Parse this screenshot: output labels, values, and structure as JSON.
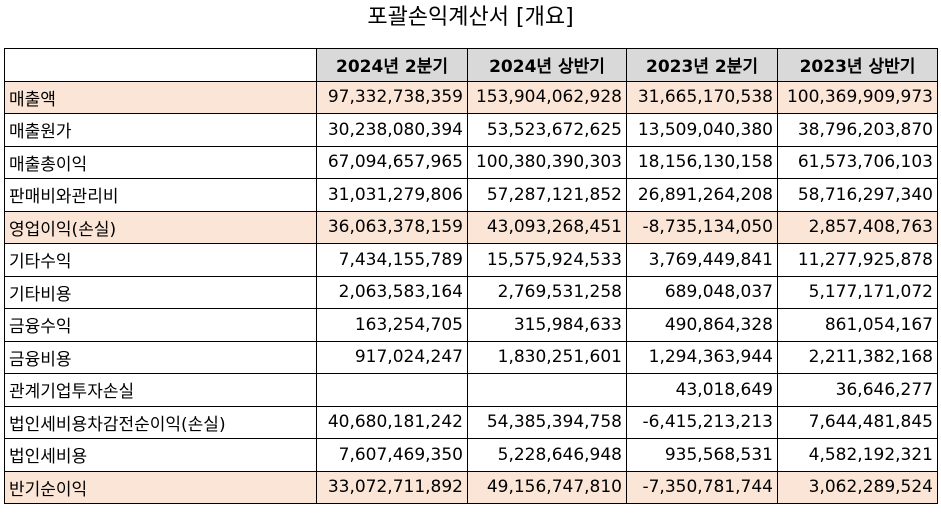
{
  "title": "포괄손익계산서 [개요]",
  "columns": [
    "",
    "2024년 2분기",
    "2024년 상반기",
    "2023년 2분기",
    "2023년 상반기"
  ],
  "rows": [
    {
      "label": "매출액",
      "values": [
        "97,332,738,359",
        "153,904,062,928",
        "31,665,170,538",
        "100,369,909,973"
      ],
      "highlight": true
    },
    {
      "label": "매출원가",
      "values": [
        "30,238,080,394",
        "53,523,672,625",
        "13,509,040,380",
        "38,796,203,870"
      ],
      "highlight": false
    },
    {
      "label": "매출총이익",
      "values": [
        "67,094,657,965",
        "100,380,390,303",
        "18,156,130,158",
        "61,573,706,103"
      ],
      "highlight": false
    },
    {
      "label": "판매비와관리비",
      "values": [
        "31,031,279,806",
        "57,287,121,852",
        "26,891,264,208",
        "58,716,297,340"
      ],
      "highlight": false
    },
    {
      "label": "영업이익(손실)",
      "values": [
        "36,063,378,159",
        "43,093,268,451",
        "-8,735,134,050",
        "2,857,408,763"
      ],
      "highlight": true
    },
    {
      "label": "기타수익",
      "values": [
        "7,434,155,789",
        "15,575,924,533",
        "3,769,449,841",
        "11,277,925,878"
      ],
      "highlight": false
    },
    {
      "label": "기타비용",
      "values": [
        "2,063,583,164",
        "2,769,531,258",
        "689,048,037",
        "5,177,171,072"
      ],
      "highlight": false
    },
    {
      "label": "금융수익",
      "values": [
        "163,254,705",
        "315,984,633",
        "490,864,328",
        "861,054,167"
      ],
      "highlight": false
    },
    {
      "label": "금융비용",
      "values": [
        "917,024,247",
        "1,830,251,601",
        "1,294,363,944",
        "2,211,382,168"
      ],
      "highlight": false
    },
    {
      "label": "관계기업투자손실",
      "values": [
        "",
        "",
        "43,018,649",
        "36,646,277"
      ],
      "highlight": false
    },
    {
      "label": "법인세비용차감전순이익(손실)",
      "values": [
        "40,680,181,242",
        "54,385,394,758",
        "-6,415,213,213",
        "7,644,481,845"
      ],
      "highlight": false
    },
    {
      "label": "법인세비용",
      "values": [
        "7,607,469,350",
        "5,228,646,948",
        "935,568,531",
        "4,582,192,321"
      ],
      "highlight": false
    },
    {
      "label": "반기순이익",
      "values": [
        "33,072,711,892",
        "49,156,747,810",
        "-7,350,781,744",
        "3,062,289,524"
      ],
      "highlight": true
    }
  ]
}
